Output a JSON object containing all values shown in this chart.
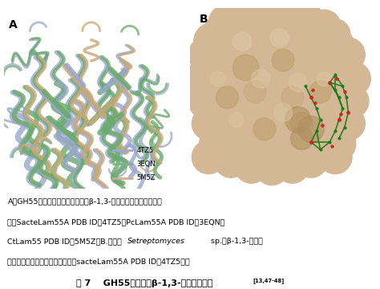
{
  "fig_width": 4.74,
  "fig_height": 3.6,
  "dpi": 100,
  "bg_color": "#ffffff",
  "panel_A_label": "A",
  "panel_B_label": "B",
  "legend_items": [
    "4TZ5",
    "3EQN",
    "5M5Z"
  ],
  "legend_colors": [
    "#a0a8c8",
    "#7ab87a",
    "#c8b090"
  ],
  "c1": "#9aa8cc",
  "c2": "#6aaa6a",
  "c3": "#c8a878",
  "tan_color": "#d4b896",
  "tan_dark": "#c8a87a",
  "tan_mid": "#ccaa84",
  "green_ligand": "#1a7a1a",
  "red_atom": "#cc2222",
  "caption_lines": [
    "A．GH55家族部分已知晶体结构的β-1,3-葡聚糖酶三维结构叠加对",
    "比。SacteLam55A PDB ID：4TZ5；PcLam55A PDB ID：3EQN；",
    "CtLam55 PDB ID：5M5Z。B.来源于Setreptomyces sp.的β-1,3-葡聚糖",
    "酵与昆布多糖的复合物晶体结构（sacteLam55A PDB ID：4TZ5）。"
  ],
  "fig_title": "图 7    GH55家族典型β-1,3-葡聚糖酵结构",
  "fig_title_sup": "[13,47-48]"
}
